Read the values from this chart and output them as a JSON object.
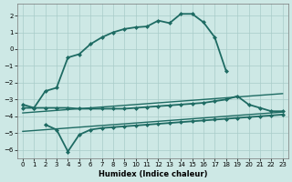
{
  "xlabel": "Humidex (Indice chaleur)",
  "background_color": "#cde8e5",
  "grid_color": "#a8ccc9",
  "line_color": "#1e6b63",
  "xlim": [
    -0.5,
    23.5
  ],
  "ylim": [
    -6.5,
    2.7
  ],
  "yticks": [
    -6,
    -5,
    -4,
    -3,
    -2,
    -1,
    0,
    1,
    2
  ],
  "xticks": [
    0,
    1,
    2,
    3,
    4,
    5,
    6,
    7,
    8,
    9,
    10,
    11,
    12,
    13,
    14,
    15,
    16,
    17,
    18,
    19,
    20,
    21,
    22,
    23
  ],
  "series": [
    {
      "x": [
        0,
        1,
        2,
        3,
        4,
        5,
        6,
        7,
        8,
        9,
        10,
        11,
        12,
        13,
        14,
        15,
        16,
        17,
        18
      ],
      "y": [
        -3.3,
        -3.5,
        -2.5,
        -2.3,
        -0.5,
        -0.3,
        0.3,
        0.7,
        1.0,
        1.2,
        1.3,
        1.35,
        1.7,
        1.55,
        2.1,
        2.1,
        1.6,
        0.7,
        -1.3
      ],
      "marker": "D",
      "markersize": 2.0,
      "linewidth": 1.3,
      "skip_markers_x": []
    },
    {
      "x": [
        0,
        1,
        2,
        3,
        4,
        5,
        6,
        7,
        8,
        9,
        10,
        11,
        12,
        13,
        14,
        15,
        16,
        17,
        18,
        19,
        20,
        21,
        22,
        23
      ],
      "y": [
        -3.5,
        -3.5,
        -3.5,
        -3.5,
        -3.5,
        -3.55,
        -3.55,
        -3.55,
        -3.55,
        -3.55,
        -3.5,
        -3.45,
        -3.4,
        -3.35,
        -3.3,
        -3.25,
        -3.2,
        -3.1,
        -3.0,
        -2.8,
        -3.3,
        -3.5,
        -3.7,
        -3.7
      ],
      "marker": "D",
      "markersize": 2.0,
      "linewidth": 1.3
    },
    {
      "x": [
        2,
        3,
        4,
        5,
        6,
        7,
        8,
        9,
        10,
        11,
        12,
        13,
        14,
        15,
        16,
        17,
        18,
        19,
        20,
        21,
        22,
        23
      ],
      "y": [
        -4.5,
        -4.8,
        -6.1,
        -5.1,
        -4.8,
        -4.7,
        -4.65,
        -4.6,
        -4.55,
        -4.5,
        -4.45,
        -4.4,
        -4.35,
        -4.3,
        -4.25,
        -4.2,
        -4.15,
        -4.1,
        -4.05,
        -4.0,
        -3.95,
        -3.9
      ],
      "marker": "D",
      "markersize": 2.0,
      "linewidth": 1.3
    },
    {
      "x": [
        0,
        1,
        2,
        3,
        4,
        5,
        6,
        7,
        8,
        9,
        10,
        11,
        12,
        13,
        14,
        15,
        16,
        17,
        18,
        19,
        20,
        21,
        22,
        23
      ],
      "y": [
        -3.8,
        -3.75,
        -3.7,
        -3.65,
        -3.6,
        -3.55,
        -3.5,
        -3.45,
        -3.4,
        -3.35,
        -3.3,
        -3.25,
        -3.2,
        -3.15,
        -3.1,
        -3.05,
        -3.0,
        -2.95,
        -2.9,
        -2.85,
        -2.8,
        -2.75,
        -2.7,
        -2.65
      ],
      "marker": null,
      "markersize": 0,
      "linewidth": 1.0
    },
    {
      "x": [
        0,
        1,
        2,
        3,
        4,
        5,
        6,
        7,
        8,
        9,
        10,
        11,
        12,
        13,
        14,
        15,
        16,
        17,
        18,
        19,
        20,
        21,
        22,
        23
      ],
      "y": [
        -4.9,
        -4.85,
        -4.8,
        -4.75,
        -4.7,
        -4.65,
        -4.6,
        -4.55,
        -4.5,
        -4.45,
        -4.4,
        -4.35,
        -4.3,
        -4.25,
        -4.2,
        -4.15,
        -4.1,
        -4.05,
        -4.0,
        -3.95,
        -3.9,
        -3.85,
        -3.8,
        -3.75
      ],
      "marker": null,
      "markersize": 0,
      "linewidth": 1.0
    }
  ]
}
